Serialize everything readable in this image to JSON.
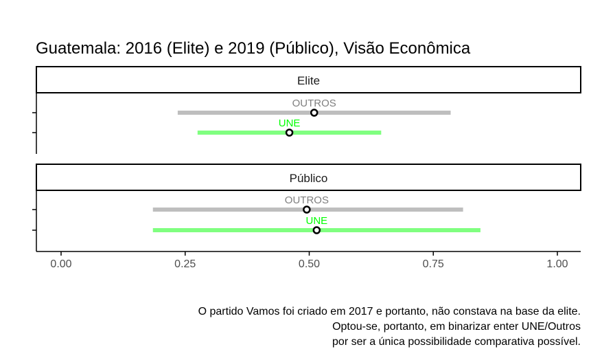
{
  "chart_data": {
    "type": "interval",
    "title": "Guatemala: 2016 (Elite) e 2019 (Público), Visão Econômica",
    "xlabel": "",
    "ylabel": "",
    "xlim": [
      0,
      1
    ],
    "x_ticks": [
      "0.00",
      "0.25",
      "0.50",
      "0.75",
      "1.00"
    ],
    "x_tick_values": [
      0,
      0.25,
      0.5,
      0.75,
      1.0
    ],
    "colors": {
      "OUTROS_line": "#bebebe",
      "OUTROS_label": "#7f7f7f",
      "UNE_line": "#80ff80",
      "UNE_label": "#00ff00"
    },
    "panels": [
      {
        "label": "Elite",
        "series": [
          {
            "name": "OUTROS",
            "point": 0.51,
            "low": 0.235,
            "high": 0.785
          },
          {
            "name": "UNE",
            "point": 0.46,
            "low": 0.275,
            "high": 0.645
          }
        ]
      },
      {
        "label": "Público",
        "series": [
          {
            "name": "OUTROS",
            "point": 0.495,
            "low": 0.185,
            "high": 0.81
          },
          {
            "name": "UNE",
            "point": 0.515,
            "low": 0.185,
            "high": 0.845
          }
        ]
      }
    ],
    "caption": [
      "O partido Vamos foi criado em 2017 e portanto, não constava na base da elite.",
      "Optou-se, portanto, em binarizar enter UNE/Outros",
      "por ser a única possibilidade comparativa possível."
    ]
  }
}
